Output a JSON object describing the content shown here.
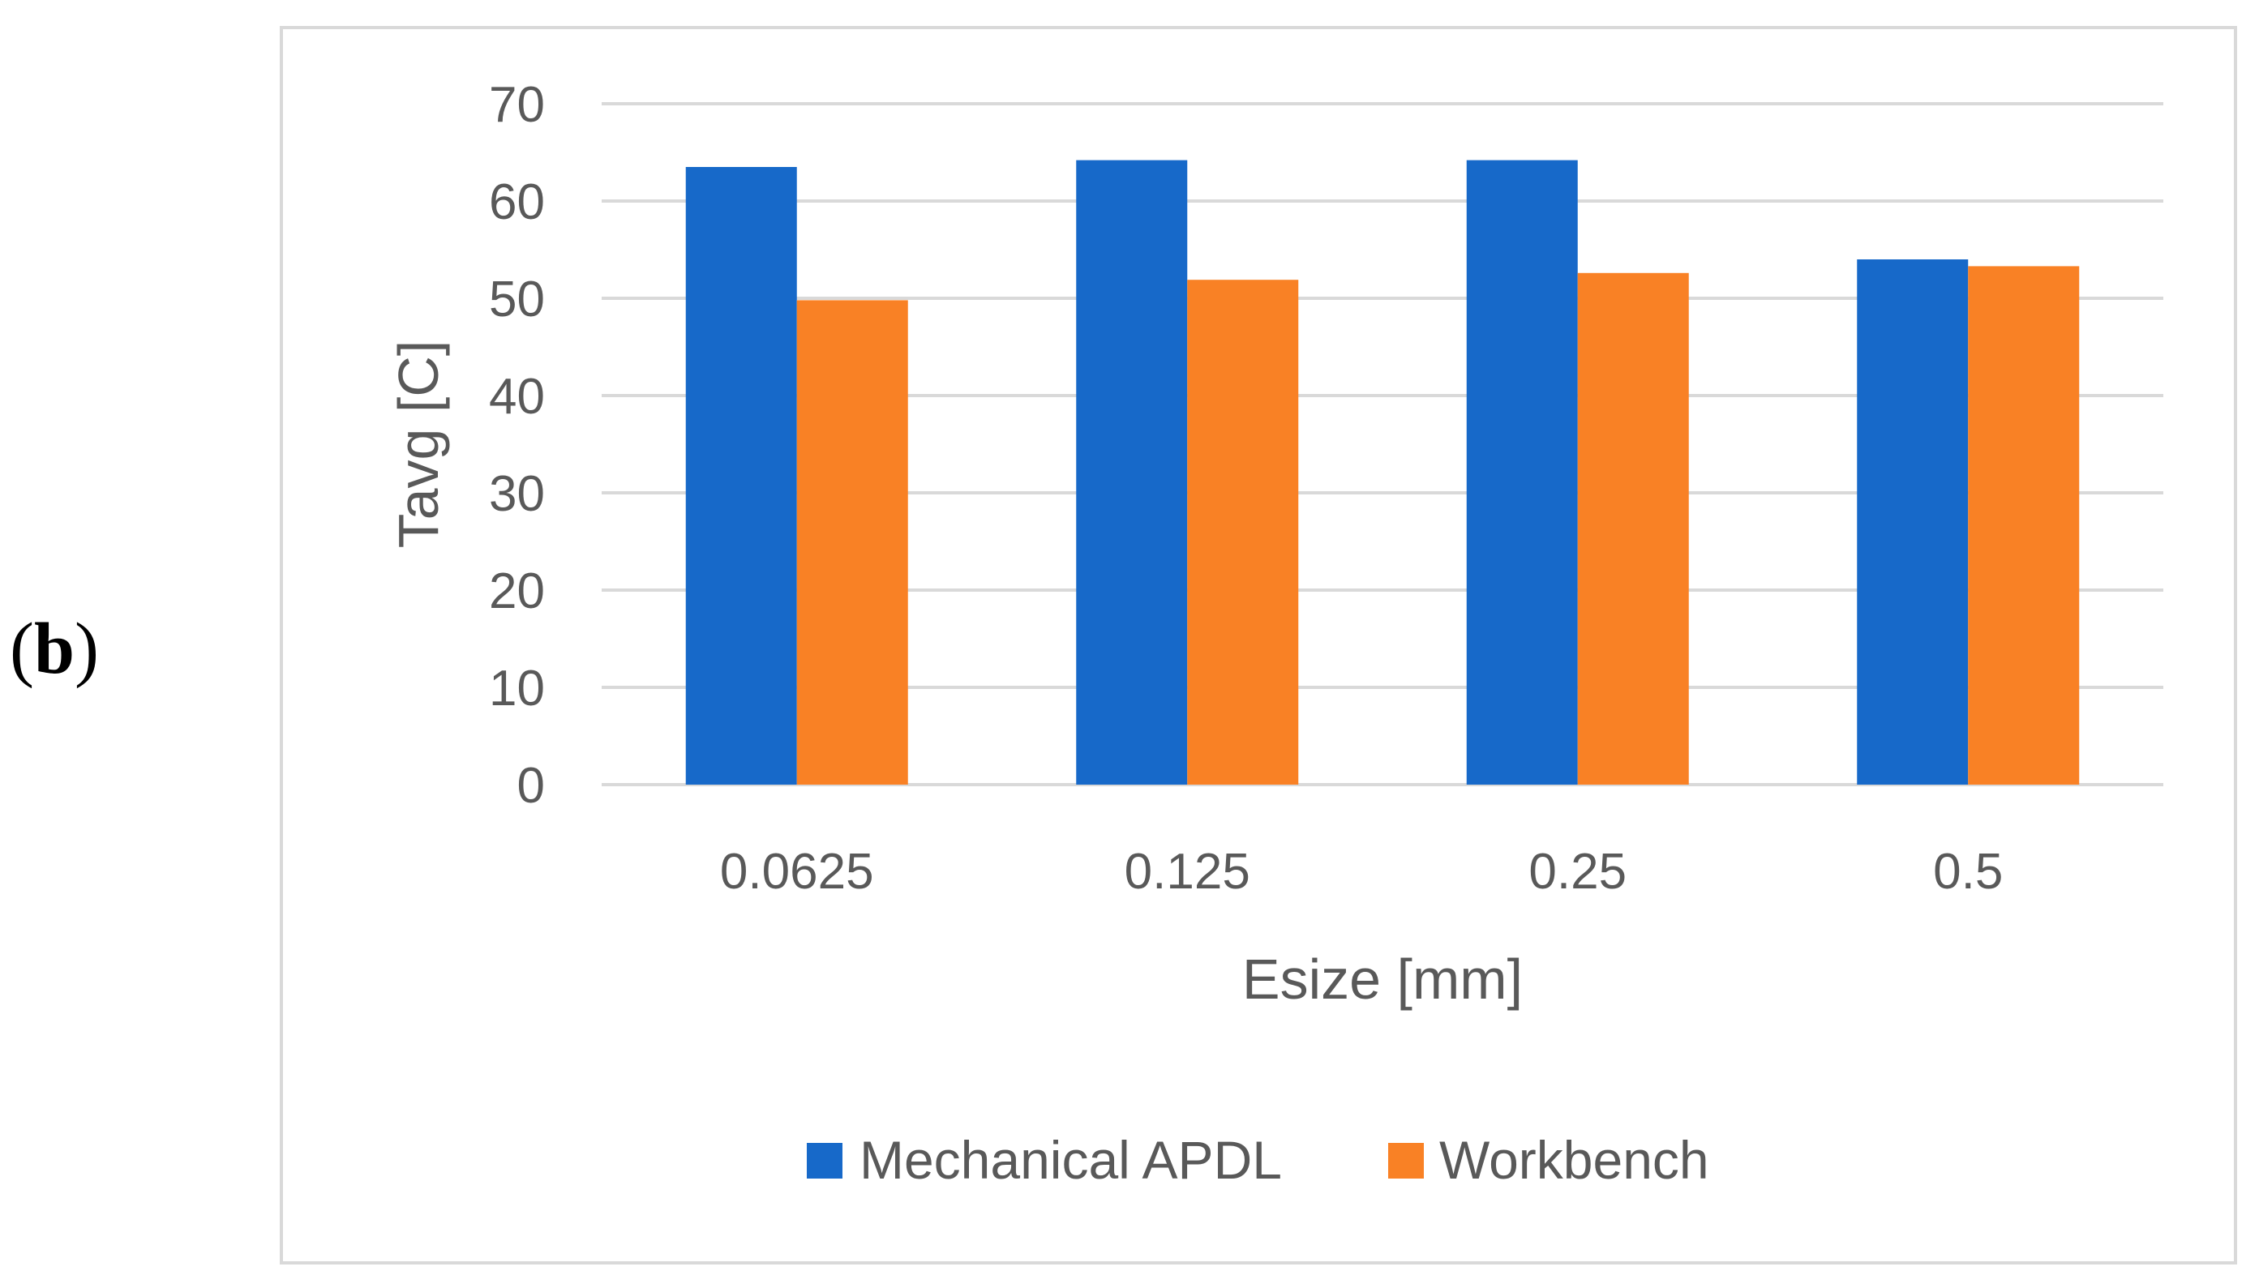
{
  "panel_label": {
    "open": "(",
    "letter": "b",
    "close": ")"
  },
  "chart_data": {
    "type": "bar",
    "title": "",
    "xlabel": "Esize [mm]",
    "ylabel": "Tavg [C]",
    "categories": [
      "0.0625",
      "0.125",
      "0.25",
      "0.5"
    ],
    "series": [
      {
        "name": "Mechanical APDL",
        "color": "#1769c9",
        "values": [
          63.5,
          64.2,
          64.2,
          54.0
        ]
      },
      {
        "name": "Workbench",
        "color": "#f98125",
        "values": [
          49.8,
          51.9,
          52.6,
          53.3
        ]
      }
    ],
    "ylim": [
      0,
      70
    ],
    "yticks": [
      0,
      10,
      20,
      30,
      40,
      50,
      60,
      70
    ],
    "grid": true,
    "gridline_color": "#d9d9d9",
    "legend_position": "bottom"
  }
}
